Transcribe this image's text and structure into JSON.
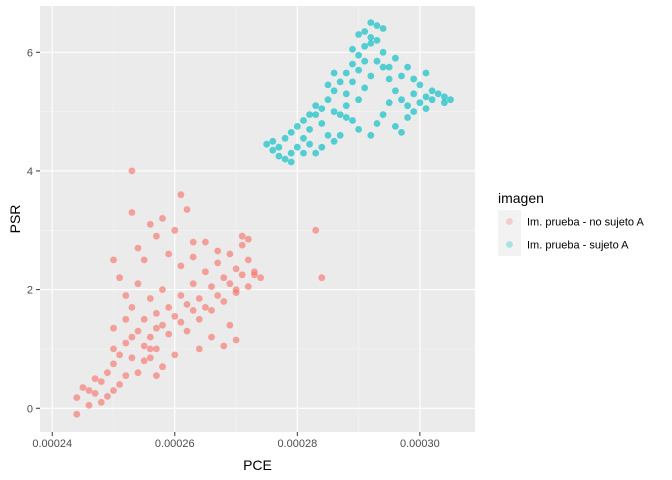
{
  "chart_data": {
    "type": "scatter",
    "xlabel": "PCE",
    "ylabel": "PSR",
    "xlim": [
      0.000238,
      0.000309
    ],
    "ylim": [
      -0.4,
      6.78
    ],
    "x_ticks": [
      0.00024,
      0.00026,
      0.00028,
      0.0003
    ],
    "x_tick_labels": [
      "0.00024",
      "0.00026",
      "0.00028",
      "0.00030"
    ],
    "y_ticks": [
      0,
      2,
      4,
      6
    ],
    "y_tick_labels": [
      "0",
      "2",
      "4",
      "6"
    ],
    "grid": true,
    "panel_background": "#ebebeb",
    "legend": {
      "title": "imagen",
      "position": "right"
    },
    "series": [
      {
        "name": "Im. prueba - no sujeto A",
        "color": "#F8766D",
        "points": [
          [
            0.000244,
            0.18
          ],
          [
            0.000245,
            0.35
          ],
          [
            0.000244,
            -0.1
          ],
          [
            0.000246,
            0.05
          ],
          [
            0.000247,
            0.25
          ],
          [
            0.000248,
            0.45
          ],
          [
            0.000249,
            0.6
          ],
          [
            0.00025,
            0.75
          ],
          [
            0.000248,
            0.1
          ],
          [
            0.00025,
            0.3
          ],
          [
            0.000252,
            0.55
          ],
          [
            0.000251,
            0.9
          ],
          [
            0.000252,
            1.1
          ],
          [
            0.000253,
            0.85
          ],
          [
            0.000254,
            1.3
          ],
          [
            0.000255,
            1.05
          ],
          [
            0.000255,
            1.5
          ],
          [
            0.000256,
            1.2
          ],
          [
            0.000257,
            1.6
          ],
          [
            0.000256,
            1.85
          ],
          [
            0.000258,
            1.4
          ],
          [
            0.000259,
            1.7
          ],
          [
            0.000257,
            1.0
          ],
          [
            0.000258,
            2.0
          ],
          [
            0.00026,
            1.55
          ],
          [
            0.000261,
            1.9
          ],
          [
            0.000262,
            1.75
          ],
          [
            0.000263,
            2.1
          ],
          [
            0.000264,
            1.85
          ],
          [
            0.000265,
            2.3
          ],
          [
            0.000266,
            2.05
          ],
          [
            0.000267,
            2.45
          ],
          [
            0.000268,
            2.2
          ],
          [
            0.000269,
            2.6
          ],
          [
            0.00027,
            2.35
          ],
          [
            0.000271,
            2.75
          ],
          [
            0.000272,
            2.5
          ],
          [
            0.000273,
            2.3
          ],
          [
            0.000274,
            2.2
          ],
          [
            0.000271,
            2.9
          ],
          [
            0.000272,
            2.85
          ],
          [
            0.000262,
            1.3
          ],
          [
            0.000264,
            1.5
          ],
          [
            0.000266,
            1.65
          ],
          [
            0.000268,
            1.8
          ],
          [
            0.00027,
            1.95
          ],
          [
            0.000272,
            2.05
          ],
          [
            0.000269,
            1.4
          ],
          [
            0.00027,
            1.15
          ],
          [
            0.000268,
            1.05
          ],
          [
            0.000266,
            1.2
          ],
          [
            0.000264,
            1.0
          ],
          [
            0.00026,
            0.9
          ],
          [
            0.000258,
            0.7
          ],
          [
            0.000256,
            0.85
          ],
          [
            0.000254,
            0.6
          ],
          [
            0.000251,
            0.4
          ],
          [
            0.000249,
            0.2
          ],
          [
            0.000253,
            4.0
          ],
          [
            0.000253,
            3.3
          ],
          [
            0.000254,
            2.7
          ],
          [
            0.000255,
            2.5
          ],
          [
            0.000256,
            3.1
          ],
          [
            0.000257,
            2.9
          ],
          [
            0.000258,
            3.2
          ],
          [
            0.000259,
            2.6
          ],
          [
            0.00026,
            3.0
          ],
          [
            0.000261,
            3.6
          ],
          [
            0.000262,
            3.35
          ],
          [
            0.000263,
            2.8
          ],
          [
            0.000261,
            2.4
          ],
          [
            0.000251,
            2.2
          ],
          [
            0.00025,
            2.5
          ],
          [
            0.000252,
            1.9
          ],
          [
            0.000253,
            1.7
          ],
          [
            0.000254,
            2.1
          ],
          [
            0.000263,
            2.55
          ],
          [
            0.000265,
            2.8
          ],
          [
            0.000267,
            2.65
          ],
          [
            0.000283,
            3.0
          ],
          [
            0.000284,
            2.2
          ],
          [
            0.00025,
            1.0
          ],
          [
            0.000247,
            0.5
          ],
          [
            0.000246,
            0.3
          ],
          [
            0.00025,
            1.35
          ],
          [
            0.000252,
            1.5
          ],
          [
            0.000256,
            1.0
          ],
          [
            0.000257,
            1.35
          ],
          [
            0.000259,
            1.25
          ],
          [
            0.000261,
            1.45
          ],
          [
            0.000263,
            1.65
          ],
          [
            0.000265,
            1.7
          ],
          [
            0.000267,
            1.9
          ],
          [
            0.000269,
            2.1
          ],
          [
            0.000271,
            2.25
          ],
          [
            0.000273,
            2.25
          ],
          [
            0.00027,
            2.0
          ],
          [
            0.000255,
            0.8
          ],
          [
            0.000257,
            0.55
          ],
          [
            0.000253,
            1.2
          ]
        ]
      },
      {
        "name": "Im. prueba - sujeto A",
        "color": "#00BFC4",
        "points": [
          [
            0.000275,
            4.45
          ],
          [
            0.000276,
            4.35
          ],
          [
            0.000277,
            4.25
          ],
          [
            0.000278,
            4.2
          ],
          [
            0.000279,
            4.3
          ],
          [
            0.000276,
            4.5
          ],
          [
            0.000278,
            4.55
          ],
          [
            0.000279,
            4.65
          ],
          [
            0.00028,
            4.4
          ],
          [
            0.000281,
            4.55
          ],
          [
            0.00028,
            4.75
          ],
          [
            0.000281,
            4.85
          ],
          [
            0.000282,
            4.7
          ],
          [
            0.000283,
            4.95
          ],
          [
            0.000284,
            4.8
          ],
          [
            0.000284,
            5.05
          ],
          [
            0.000285,
            5.2
          ],
          [
            0.000286,
            5.0
          ],
          [
            0.000286,
            5.35
          ],
          [
            0.000287,
            5.5
          ],
          [
            0.000288,
            5.3
          ],
          [
            0.000288,
            5.65
          ],
          [
            0.000289,
            5.8
          ],
          [
            0.000289,
            5.5
          ],
          [
            0.00029,
            5.95
          ],
          [
            0.00029,
            5.7
          ],
          [
            0.000291,
            6.1
          ],
          [
            0.000291,
            5.85
          ],
          [
            0.000292,
            6.25
          ],
          [
            0.000292,
            6.5
          ],
          [
            0.000293,
            6.45
          ],
          [
            0.000293,
            6.2
          ],
          [
            0.000294,
            6.0
          ],
          [
            0.000294,
            5.75
          ],
          [
            0.000295,
            5.55
          ],
          [
            0.000296,
            5.35
          ],
          [
            0.000297,
            5.2
          ],
          [
            0.000298,
            5.1
          ],
          [
            0.000299,
            5.0
          ],
          [
            0.0003,
            5.15
          ],
          [
            0.000301,
            5.25
          ],
          [
            0.000302,
            5.35
          ],
          [
            0.000303,
            5.3
          ],
          [
            0.000304,
            5.25
          ],
          [
            0.000305,
            5.2
          ],
          [
            0.000304,
            5.15
          ],
          [
            0.000297,
            5.6
          ],
          [
            0.000298,
            5.75
          ],
          [
            0.000299,
            5.55
          ],
          [
            0.0003,
            5.45
          ],
          [
            0.000301,
            5.65
          ],
          [
            0.000295,
            5.15
          ],
          [
            0.000294,
            4.95
          ],
          [
            0.000293,
            4.8
          ],
          [
            0.000292,
            4.6
          ],
          [
            0.00029,
            4.7
          ],
          [
            0.000289,
            4.85
          ],
          [
            0.000288,
            4.9
          ],
          [
            0.000287,
            4.6
          ],
          [
            0.000286,
            4.5
          ],
          [
            0.000285,
            4.6
          ],
          [
            0.000284,
            4.4
          ],
          [
            0.000283,
            4.3
          ],
          [
            0.000282,
            4.45
          ],
          [
            0.000279,
            4.15
          ],
          [
            0.000291,
            5.4
          ],
          [
            0.00029,
            5.2
          ],
          [
            0.000292,
            5.6
          ],
          [
            0.000293,
            5.85
          ],
          [
            0.000295,
            5.75
          ],
          [
            0.000296,
            5.9
          ],
          [
            0.000289,
            6.05
          ],
          [
            0.00029,
            6.3
          ],
          [
            0.000291,
            6.35
          ],
          [
            0.000288,
            5.1
          ],
          [
            0.000287,
            4.95
          ],
          [
            0.000296,
            4.75
          ],
          [
            0.000297,
            4.65
          ],
          [
            0.000298,
            4.9
          ],
          [
            0.000302,
            5.2
          ],
          [
            0.000299,
            5.3
          ],
          [
            0.000286,
            5.65
          ],
          [
            0.000285,
            5.45
          ],
          [
            0.000283,
            5.1
          ],
          [
            0.000282,
            4.95
          ],
          [
            0.000281,
            4.3
          ],
          [
            0.000277,
            4.4
          ],
          [
            0.000294,
            6.4
          ],
          [
            0.000292,
            6.15
          ],
          [
            0.000301,
            5.05
          ]
        ]
      }
    ]
  }
}
